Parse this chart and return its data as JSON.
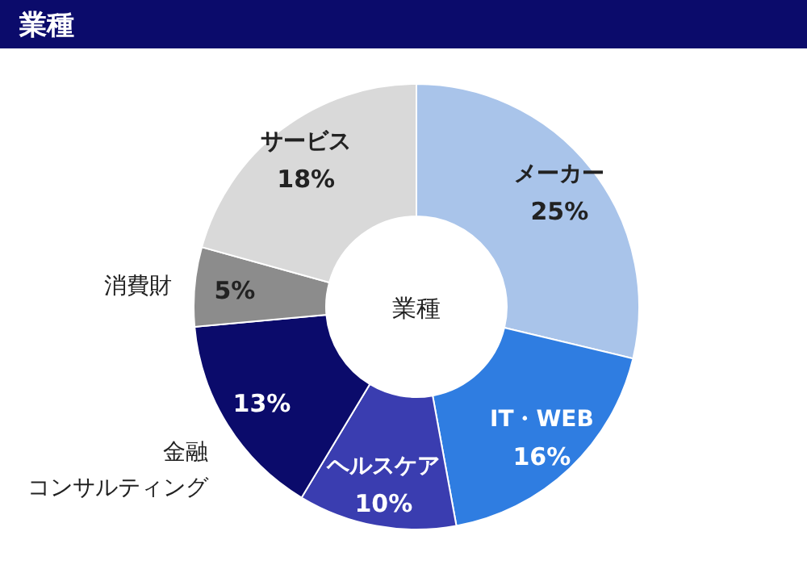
{
  "chart_data": {
    "type": "donut",
    "title": "業種",
    "annotations": [
      "業種"
    ],
    "categories": [
      "メーカー",
      "IT・WEB",
      "ヘルスケア",
      "金融コンサルティング",
      "消費財",
      "サービス"
    ],
    "values": [
      25,
      16,
      10,
      13,
      5,
      18
    ],
    "value_labels": [
      "25%",
      "16%",
      "10%",
      "13%",
      "5%",
      "18%"
    ],
    "colors": [
      "#a9c4ea",
      "#2f7de1",
      "#3a3db0",
      "#0b0b6b",
      "#8c8c8c",
      "#d9d9d9"
    ]
  }
}
